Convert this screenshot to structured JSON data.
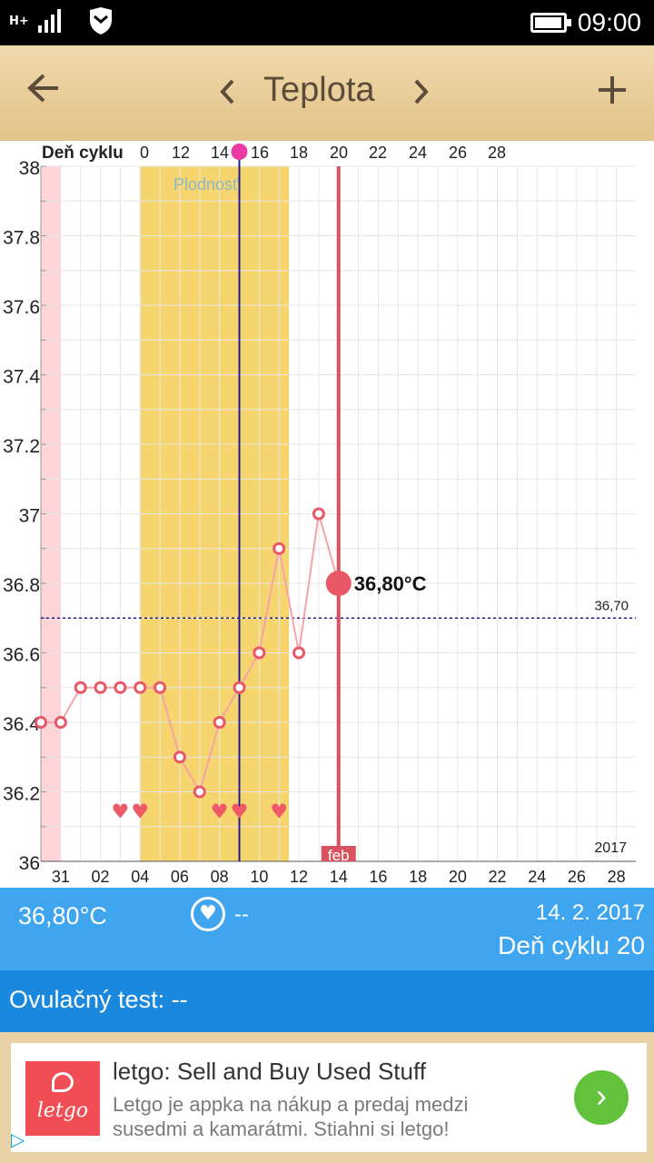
{
  "status_bar": {
    "network": "H+",
    "time": "09:00",
    "battery_level": 0.95
  },
  "toolbar": {
    "back_icon": "arrow-left-icon",
    "prev_icon": "chevron-left-icon",
    "title": "Teplota",
    "next_icon": "chevron-right-icon",
    "add_icon": "plus-icon"
  },
  "chart_data": {
    "type": "line",
    "cycle_axis_label": "Deň cyklu",
    "cycle_ticks": [
      "0",
      "12",
      "14",
      "16",
      "18",
      "20",
      "22",
      "24",
      "26",
      "28"
    ],
    "date_ticks": [
      "31",
      "02",
      "04",
      "06",
      "08",
      "10",
      "12",
      "14",
      "16",
      "18",
      "20",
      "22",
      "24",
      "26",
      "28"
    ],
    "y_ticks": [
      "36",
      "36.2",
      "36.4",
      "36.6",
      "36.8",
      "37",
      "37.2",
      "37.4",
      "37.6",
      "37.8",
      "38"
    ],
    "ylim": [
      36,
      38
    ],
    "fertile_label": "Plodnosť",
    "fertile_window": [
      "04",
      "11"
    ],
    "ovulation_day": "09",
    "coverline_label": "36,70",
    "coverline_value": 36.7,
    "year_label": "2017",
    "month_label": "feb",
    "selected": {
      "x": "14",
      "y": 36.8,
      "label": "36,80°C"
    },
    "series": [
      {
        "x": [
          "30",
          "31",
          "01",
          "02",
          "03",
          "04",
          "05",
          "06",
          "07",
          "08",
          "09",
          "10",
          "11",
          "12",
          "13",
          "14"
        ],
        "values": [
          36.4,
          36.4,
          36.5,
          36.5,
          36.5,
          36.5,
          36.5,
          36.3,
          36.2,
          36.4,
          36.5,
          36.6,
          36.9,
          36.6,
          37.0,
          36.8
        ]
      }
    ],
    "intercourse_days": [
      "03",
      "04",
      "08",
      "09",
      "11"
    ],
    "colors": {
      "line": "#f5a3a8",
      "marker": "#e85866",
      "fertile": "#f6d56e",
      "period": "#fdd4d7",
      "ovulation": "#1d1d8f",
      "today": "#d8535f"
    }
  },
  "info": {
    "temperature": "36,80°C",
    "intercourse": "--",
    "date": "14. 2. 2017",
    "cycle_day": "Deň cyklu 20",
    "ovulation_test": "Ovulačný test: --"
  },
  "ad": {
    "logo_text": "letgo",
    "title": "letgo: Sell and Buy Used Stuff",
    "description": "Letgo je appka na nákup a predaj medzi susedmi a kamarátmi. Stiahni si letgo!"
  }
}
